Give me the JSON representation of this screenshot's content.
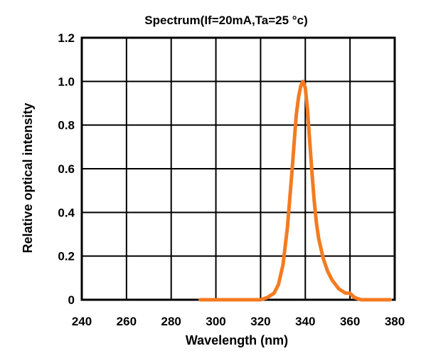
{
  "chart_data": {
    "type": "line",
    "title": "Spectrum(If=20mA,Ta=25 °c)",
    "xlabel": "Wavelength (nm)",
    "ylabel": "Relative optical intensity",
    "xlim": [
      240,
      380
    ],
    "ylim": [
      0,
      1.2
    ],
    "x_ticks": [
      240,
      260,
      280,
      300,
      320,
      340,
      360,
      380
    ],
    "x_tick_labels": [
      "240",
      "260",
      "280",
      "300",
      "320",
      "340",
      "360",
      "380"
    ],
    "y_ticks": [
      0,
      0.2,
      0.4,
      0.6,
      0.8,
      1.0,
      1.2
    ],
    "y_tick_labels": [
      "0",
      "0.2",
      "0.4",
      "0.6",
      "0.8",
      "1.0",
      "1.2"
    ],
    "grid": true,
    "series": [
      {
        "color": "#f47b20",
        "x": [
          293,
          300,
          310,
          320,
          323,
          326,
          328,
          330,
          332,
          334,
          335,
          336,
          337,
          338,
          339,
          340,
          341,
          342,
          343,
          344,
          345,
          346,
          348,
          350,
          352,
          355,
          358,
          360,
          362,
          365,
          370,
          378
        ],
        "y": [
          0,
          0,
          0,
          0,
          0.01,
          0.03,
          0.07,
          0.16,
          0.33,
          0.58,
          0.72,
          0.85,
          0.93,
          0.98,
          1.0,
          0.97,
          0.87,
          0.72,
          0.58,
          0.45,
          0.35,
          0.28,
          0.19,
          0.13,
          0.09,
          0.05,
          0.03,
          0.03,
          0.01,
          0,
          0,
          0
        ]
      }
    ]
  }
}
